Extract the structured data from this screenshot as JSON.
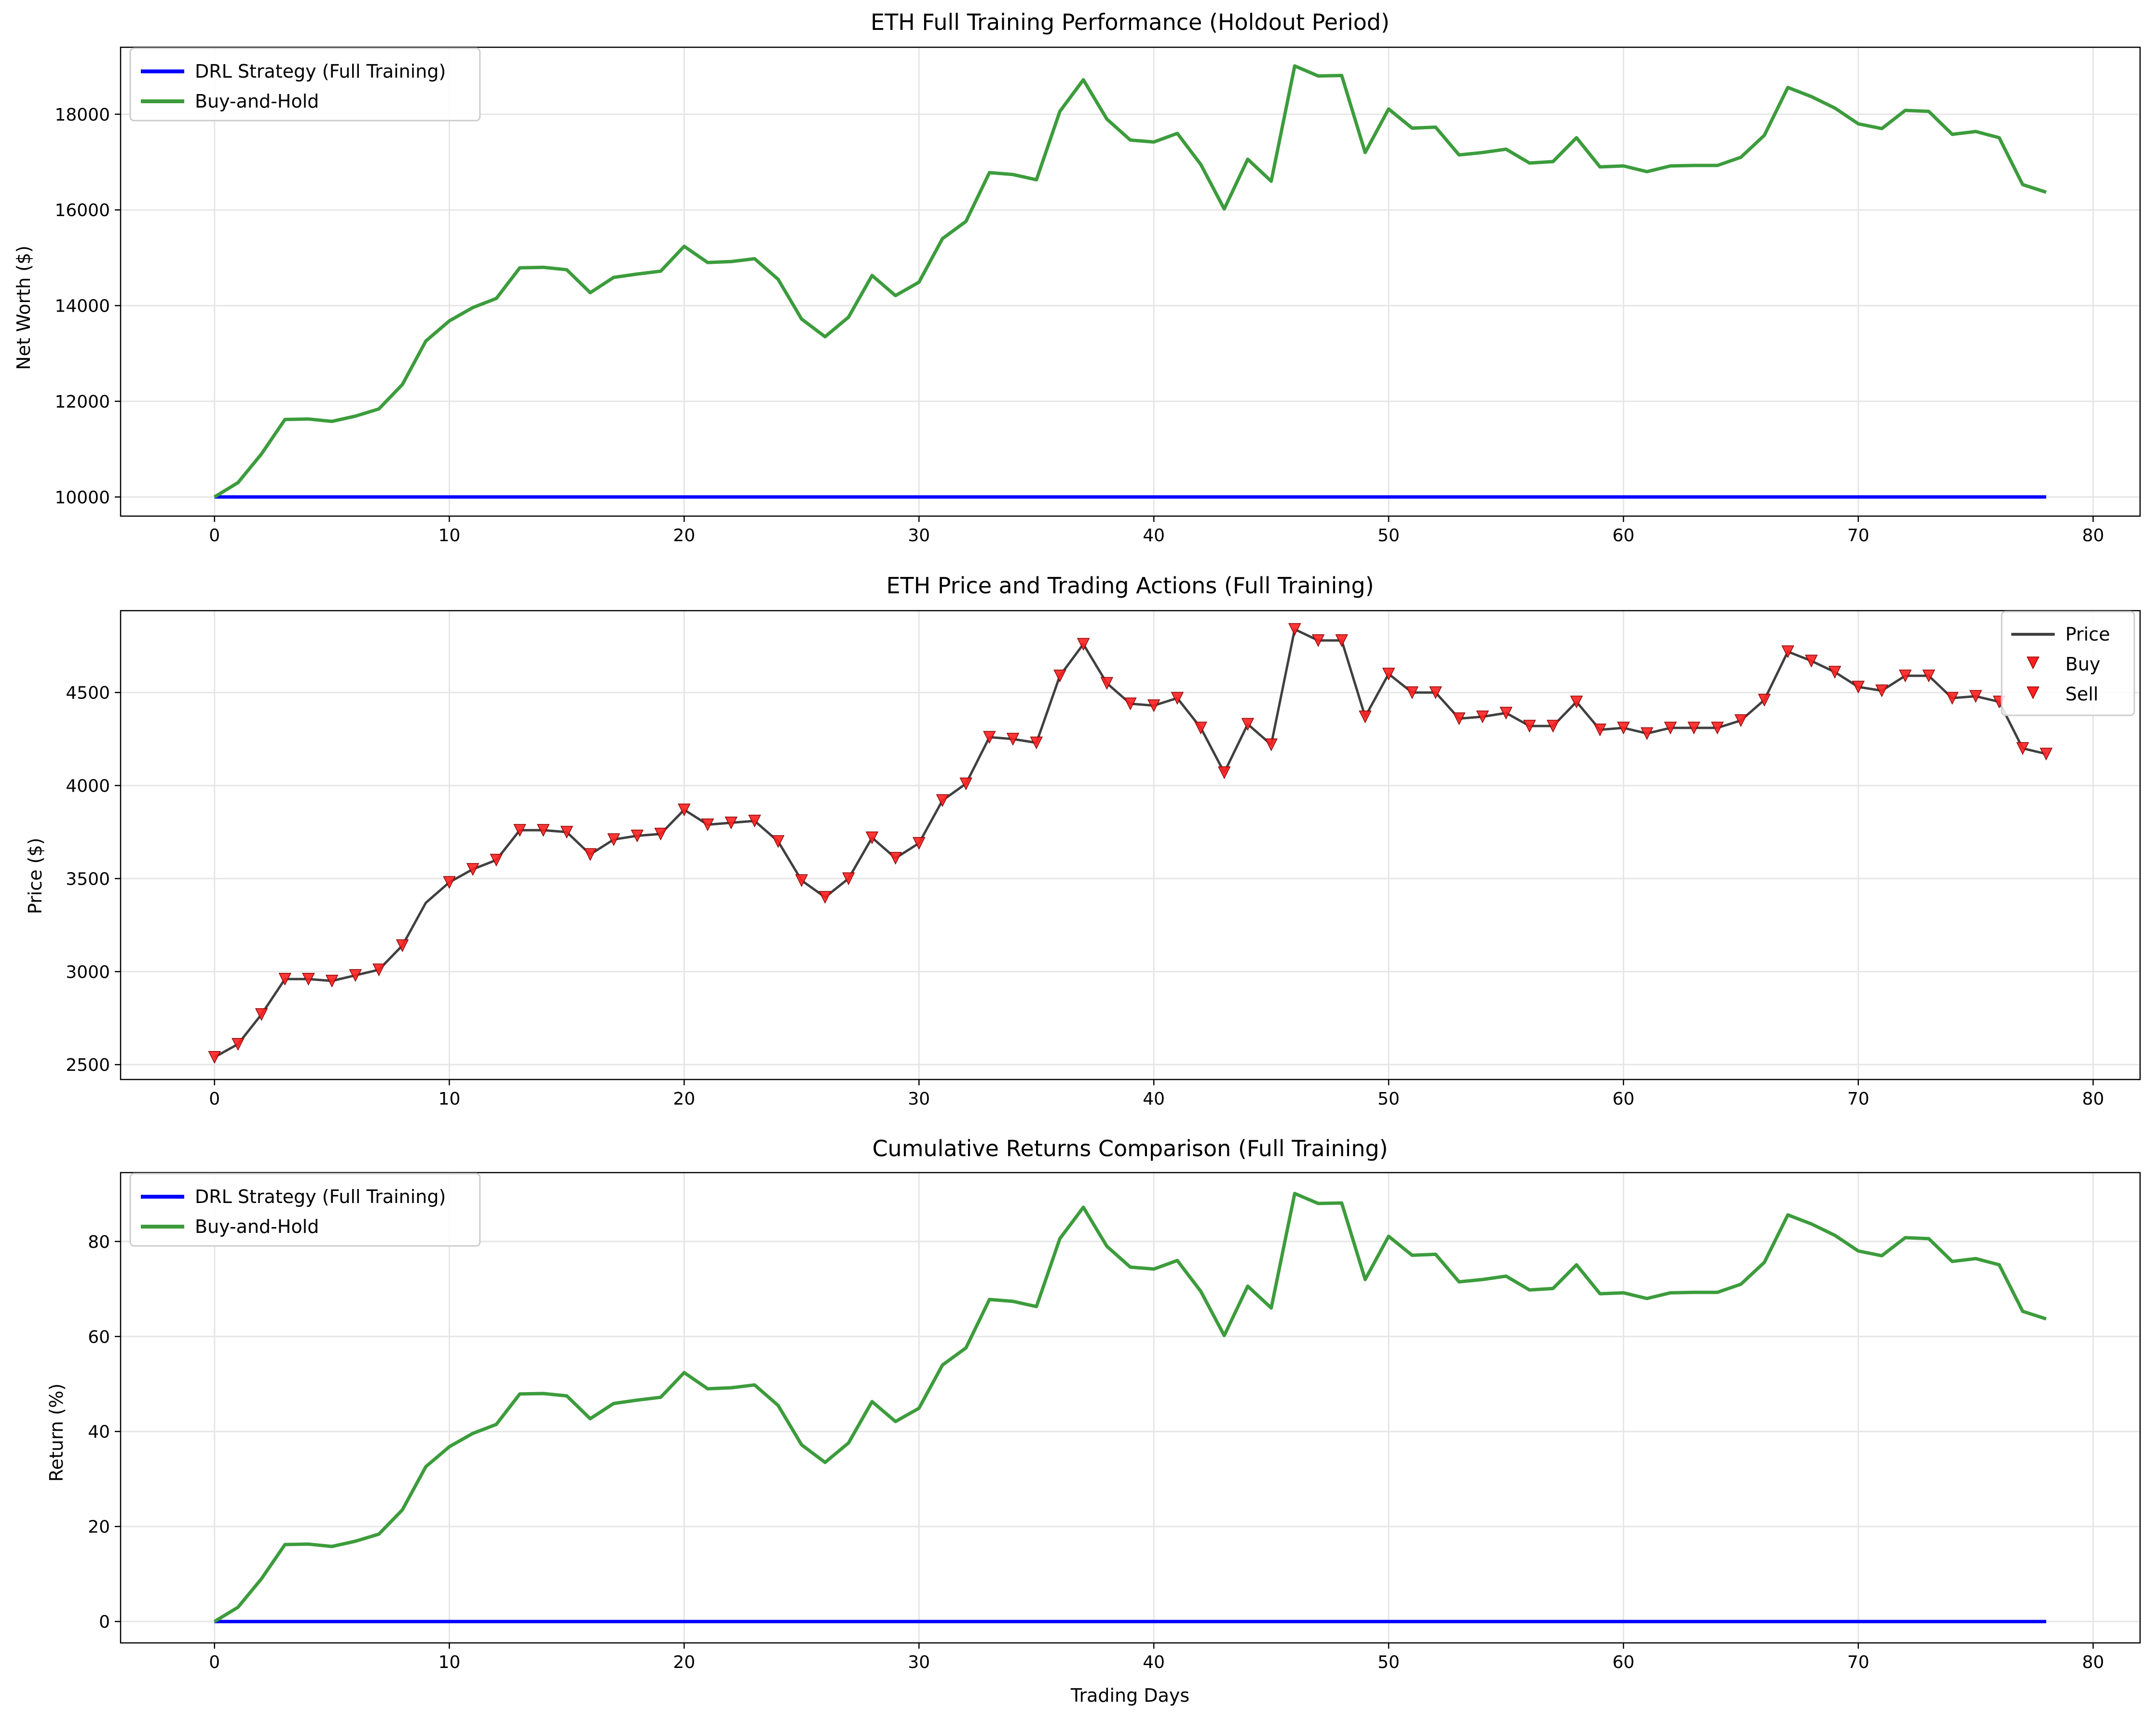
{
  "figure": {
    "panels": [
      {
        "id": "net-worth",
        "title": "ETH Full Training Performance (Holdout Period)",
        "ylabel": "Net Worth ($)",
        "xlabel": "",
        "legend": [
          "DRL Strategy (Full Training)",
          "Buy-and-Hold"
        ]
      },
      {
        "id": "price",
        "title": "ETH Price and Trading Actions (Full Training)",
        "ylabel": "Price ($)",
        "xlabel": "",
        "legend": [
          "Price",
          "Buy",
          "Sell"
        ]
      },
      {
        "id": "returns",
        "title": "Cumulative Returns Comparison (Full Training)",
        "ylabel": "Return (%)",
        "xlabel": "Trading Days",
        "legend": [
          "DRL Strategy (Full Training)",
          "Buy-and-Hold"
        ]
      }
    ]
  },
  "colors": {
    "drl": "#0000ff",
    "buy_hold": "#3c9c3c",
    "price": "#404040",
    "marker": "#ff2020",
    "grid": "#e6e6e6"
  },
  "chart_data": [
    {
      "type": "line",
      "title": "ETH Full Training Performance (Holdout Period)",
      "xlabel": "",
      "ylabel": "Net Worth ($)",
      "xlim": [
        -4,
        82
      ],
      "ylim": [
        9600,
        19400
      ],
      "xticks": [
        0,
        10,
        20,
        30,
        40,
        50,
        60,
        70,
        80
      ],
      "yticks": [
        10000,
        12000,
        14000,
        16000,
        18000
      ],
      "grid": true,
      "legend_position": "top-left",
      "x": [
        0,
        1,
        2,
        3,
        4,
        5,
        6,
        7,
        8,
        9,
        10,
        11,
        12,
        13,
        14,
        15,
        16,
        17,
        18,
        19,
        20,
        21,
        22,
        23,
        24,
        25,
        26,
        27,
        28,
        29,
        30,
        31,
        32,
        33,
        34,
        35,
        36,
        37,
        38,
        39,
        40,
        41,
        42,
        43,
        44,
        45,
        46,
        47,
        48,
        49,
        50,
        51,
        52,
        53,
        54,
        55,
        56,
        57,
        58,
        59,
        60,
        61,
        62,
        63,
        64,
        65,
        66,
        67,
        68,
        69,
        70,
        71,
        72,
        73,
        74,
        75,
        76,
        77,
        78
      ],
      "series": [
        {
          "name": "DRL Strategy (Full Training)",
          "values": [
            10000,
            10000,
            10000,
            10000,
            10000,
            10000,
            10000,
            10000,
            10000,
            10000,
            10000,
            10000,
            10000,
            10000,
            10000,
            10000,
            10000,
            10000,
            10000,
            10000,
            10000,
            10000,
            10000,
            10000,
            10000,
            10000,
            10000,
            10000,
            10000,
            10000,
            10000,
            10000,
            10000,
            10000,
            10000,
            10000,
            10000,
            10000,
            10000,
            10000,
            10000,
            10000,
            10000,
            10000,
            10000,
            10000,
            10000,
            10000,
            10000,
            10000,
            10000,
            10000,
            10000,
            10000,
            10000,
            10000,
            10000,
            10000,
            10000,
            10000,
            10000,
            10000,
            10000,
            10000,
            10000,
            10000,
            10000,
            10000,
            10000,
            10000,
            10000,
            10000,
            10000,
            10000,
            10000,
            10000,
            10000,
            10000,
            10000
          ]
        },
        {
          "name": "Buy-and-Hold",
          "values": [
            10000,
            10300,
            10900,
            11620,
            11630,
            11580,
            11690,
            11840,
            12350,
            13260,
            13680,
            13960,
            14150,
            14790,
            14800,
            14750,
            14270,
            14590,
            14660,
            14720,
            15240,
            14900,
            14920,
            14980,
            14550,
            13720,
            13350,
            13760,
            14630,
            14210,
            14490,
            15400,
            15760,
            16780,
            16740,
            16630,
            18060,
            18720,
            17900,
            17460,
            17420,
            17600,
            16950,
            16020,
            17060,
            16600,
            19010,
            18800,
            18810,
            17200,
            18110,
            17710,
            17730,
            17150,
            17200,
            17270,
            16980,
            17010,
            17510,
            16900,
            16920,
            16800,
            16920,
            16930,
            16930,
            17100,
            17560,
            18560,
            18370,
            18130,
            17800,
            17700,
            18080,
            18060,
            17580,
            17640,
            17510,
            16530,
            16370
          ]
        }
      ]
    },
    {
      "type": "line",
      "title": "ETH Price and Trading Actions (Full Training)",
      "xlabel": "",
      "ylabel": "Price ($)",
      "xlim": [
        -4,
        82
      ],
      "ylim": [
        2420,
        4940
      ],
      "xticks": [
        0,
        10,
        20,
        30,
        40,
        50,
        60,
        70,
        80
      ],
      "yticks": [
        2500,
        3000,
        3500,
        4000,
        4500
      ],
      "grid": true,
      "legend_position": "top-right",
      "x": [
        0,
        1,
        2,
        3,
        4,
        5,
        6,
        7,
        8,
        9,
        10,
        11,
        12,
        13,
        14,
        15,
        16,
        17,
        18,
        19,
        20,
        21,
        22,
        23,
        24,
        25,
        26,
        27,
        28,
        29,
        30,
        31,
        32,
        33,
        34,
        35,
        36,
        37,
        38,
        39,
        40,
        41,
        42,
        43,
        44,
        45,
        46,
        47,
        48,
        49,
        50,
        51,
        52,
        53,
        54,
        55,
        56,
        57,
        58,
        59,
        60,
        61,
        62,
        63,
        64,
        65,
        66,
        67,
        68,
        69,
        70,
        71,
        72,
        73,
        74,
        75,
        76,
        77,
        78
      ],
      "series": [
        {
          "name": "Price",
          "values": [
            2540,
            2610,
            2770,
            2960,
            2960,
            2950,
            2980,
            3010,
            3140,
            3370,
            3480,
            3550,
            3600,
            3760,
            3760,
            3750,
            3630,
            3710,
            3730,
            3740,
            3870,
            3790,
            3800,
            3810,
            3700,
            3490,
            3400,
            3500,
            3720,
            3610,
            3690,
            3920,
            4010,
            4260,
            4250,
            4230,
            4590,
            4760,
            4550,
            4440,
            4430,
            4470,
            4310,
            4070,
            4330,
            4220,
            4840,
            4780,
            4780,
            4370,
            4600,
            4500,
            4500,
            4360,
            4370,
            4390,
            4320,
            4320,
            4450,
            4300,
            4310,
            4280,
            4310,
            4310,
            4310,
            4350,
            4460,
            4720,
            4670,
            4610,
            4530,
            4510,
            4590,
            4590,
            4470,
            4480,
            4450,
            4200,
            4170
          ]
        },
        {
          "name": "Buy",
          "marker": "triangle-down",
          "indices": []
        },
        {
          "name": "Sell",
          "marker": "triangle-down",
          "indices": [
            0,
            1,
            2,
            3,
            4,
            5,
            6,
            7,
            8,
            10,
            11,
            12,
            13,
            14,
            15,
            16,
            17,
            18,
            19,
            20,
            21,
            22,
            23,
            24,
            25,
            26,
            27,
            28,
            29,
            30,
            31,
            32,
            33,
            34,
            35,
            36,
            37,
            38,
            39,
            40,
            41,
            42,
            43,
            44,
            45,
            46,
            47,
            48,
            49,
            50,
            51,
            52,
            53,
            54,
            55,
            56,
            57,
            58,
            59,
            60,
            61,
            62,
            63,
            64,
            65,
            66,
            67,
            68,
            69,
            70,
            71,
            72,
            73,
            74,
            75,
            76,
            77,
            78
          ]
        }
      ]
    },
    {
      "type": "line",
      "title": "Cumulative Returns Comparison (Full Training)",
      "xlabel": "Trading Days",
      "ylabel": "Return (%)",
      "xlim": [
        -4,
        82
      ],
      "ylim": [
        -4.5,
        94.5
      ],
      "xticks": [
        0,
        10,
        20,
        30,
        40,
        50,
        60,
        70,
        80
      ],
      "yticks": [
        0,
        20,
        40,
        60,
        80
      ],
      "grid": true,
      "legend_position": "top-left",
      "x": [
        0,
        1,
        2,
        3,
        4,
        5,
        6,
        7,
        8,
        9,
        10,
        11,
        12,
        13,
        14,
        15,
        16,
        17,
        18,
        19,
        20,
        21,
        22,
        23,
        24,
        25,
        26,
        27,
        28,
        29,
        30,
        31,
        32,
        33,
        34,
        35,
        36,
        37,
        38,
        39,
        40,
        41,
        42,
        43,
        44,
        45,
        46,
        47,
        48,
        49,
        50,
        51,
        52,
        53,
        54,
        55,
        56,
        57,
        58,
        59,
        60,
        61,
        62,
        63,
        64,
        65,
        66,
        67,
        68,
        69,
        70,
        71,
        72,
        73,
        74,
        75,
        76,
        77,
        78
      ],
      "series": [
        {
          "name": "DRL Strategy (Full Training)",
          "values": [
            0,
            0,
            0,
            0,
            0,
            0,
            0,
            0,
            0,
            0,
            0,
            0,
            0,
            0,
            0,
            0,
            0,
            0,
            0,
            0,
            0,
            0,
            0,
            0,
            0,
            0,
            0,
            0,
            0,
            0,
            0,
            0,
            0,
            0,
            0,
            0,
            0,
            0,
            0,
            0,
            0,
            0,
            0,
            0,
            0,
            0,
            0,
            0,
            0,
            0,
            0,
            0,
            0,
            0,
            0,
            0,
            0,
            0,
            0,
            0,
            0,
            0,
            0,
            0,
            0,
            0,
            0,
            0,
            0,
            0,
            0,
            0,
            0,
            0,
            0,
            0,
            0,
            0,
            0
          ]
        },
        {
          "name": "Buy-and-Hold",
          "values": [
            0,
            3.0,
            9.0,
            16.2,
            16.3,
            15.8,
            16.9,
            18.4,
            23.5,
            32.6,
            36.8,
            39.6,
            41.5,
            47.9,
            48.0,
            47.5,
            42.7,
            45.9,
            46.6,
            47.2,
            52.4,
            49.0,
            49.2,
            49.8,
            45.5,
            37.2,
            33.5,
            37.6,
            46.3,
            42.1,
            44.9,
            54.0,
            57.6,
            67.8,
            67.4,
            66.3,
            80.6,
            87.2,
            79.0,
            74.6,
            74.2,
            76.0,
            69.5,
            60.2,
            70.6,
            66.0,
            90.1,
            88.0,
            88.1,
            72.0,
            81.1,
            77.1,
            77.3,
            71.5,
            72.0,
            72.7,
            69.8,
            70.1,
            75.1,
            69.0,
            69.2,
            68.0,
            69.2,
            69.3,
            69.3,
            71.0,
            75.6,
            85.6,
            83.7,
            81.3,
            78.0,
            77.0,
            80.8,
            80.6,
            75.8,
            76.4,
            75.1,
            65.3,
            63.7
          ]
        }
      ]
    }
  ]
}
